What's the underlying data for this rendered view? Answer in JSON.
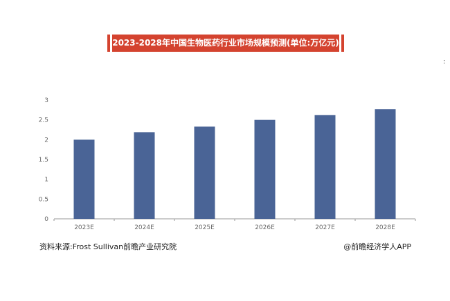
{
  "title": "2023-2028年中国生物医药行业市场规模预测(单位:万亿元)",
  "stray_mark": ":",
  "source_label": "资料来源:Frost Sullivan前瞻产业研究院",
  "brand_label": "@前瞻经济学人APP",
  "colors": {
    "accent": "#d4432f",
    "bar": "#4a6496",
    "axis": "#999999"
  },
  "chart_data": {
    "type": "bar",
    "title": "2023-2028年中国生物医药行业市场规模预测(单位:万亿元)",
    "xlabel": "",
    "ylabel": "",
    "categories": [
      "2023E",
      "2024E",
      "2025E",
      "2026E",
      "2027E",
      "2028E"
    ],
    "values": [
      2.0,
      2.19,
      2.33,
      2.5,
      2.62,
      2.77
    ],
    "ylim": [
      0,
      3
    ],
    "yticks": [
      "0",
      "0.5",
      "1",
      "1.5",
      "2",
      "2.5",
      "3"
    ],
    "grid": false,
    "legend": "none"
  }
}
